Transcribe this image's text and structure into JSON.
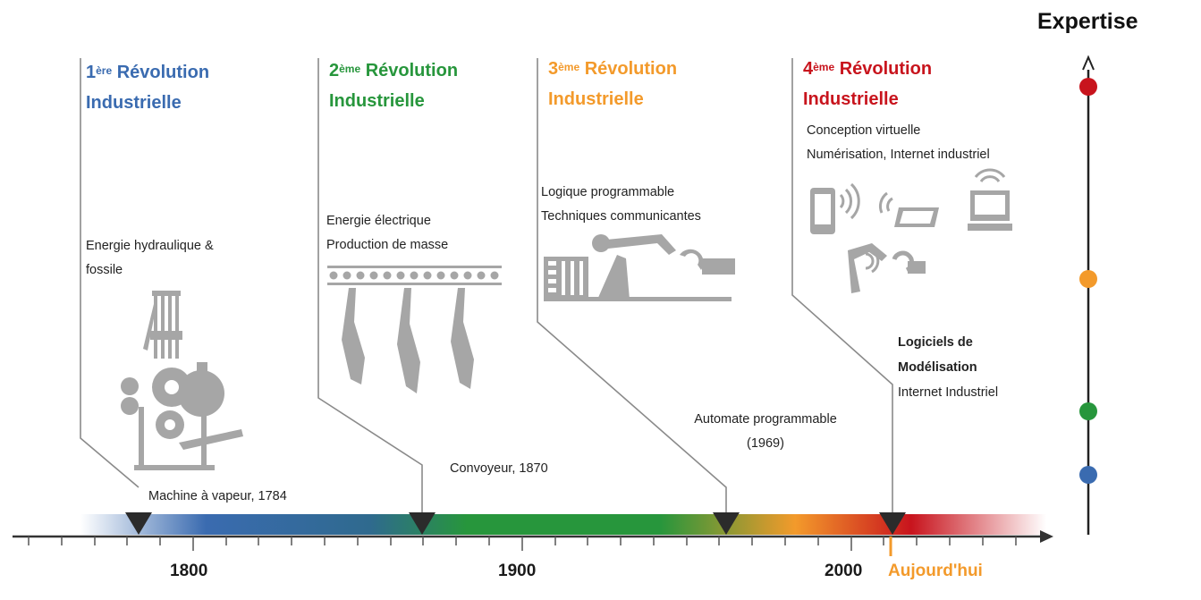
{
  "colors": {
    "rev1": "#3a6bb0",
    "rev2": "#27963c",
    "rev3": "#f39a2b",
    "rev4": "#c8141d",
    "today": "#f39a2b",
    "pictogram": "#a6a6a6",
    "line": "#7f7f7f"
  },
  "expertise": {
    "title": "Expertise",
    "dots": [
      "rev4",
      "rev3",
      "rev2",
      "rev1"
    ]
  },
  "revolutions": [
    {
      "ordinal": "1",
      "sup": "ère",
      "word": "Révolution",
      "line2": "Industrielle",
      "descriptions": [
        "Energie hydraulique  &",
        "fossile"
      ],
      "event": "Machine à vapeur, 1784",
      "color_key": "rev1",
      "icon": "steam-machine-icon"
    },
    {
      "ordinal": "2",
      "sup": "ème",
      "word": "Révolution",
      "line2": "Industrielle",
      "descriptions": [
        "Energie électrique",
        "Production de masse"
      ],
      "event": "Convoyeur, 1870",
      "color_key": "rev2",
      "icon": "conveyor-icon"
    },
    {
      "ordinal": "3",
      "sup": "ème",
      "word": " Révolution",
      "line2": "Industrielle",
      "descriptions": [
        "Logique programmable",
        "Techniques communicantes"
      ],
      "event_lines": [
        "Automate programmable",
        "(1969)"
      ],
      "color_key": "rev3",
      "icon": "robot-arm-icon"
    },
    {
      "ordinal": "4",
      "sup": "ème",
      "word": "Révolution",
      "line2": "Industrielle",
      "descriptions": [
        "Conception virtuelle",
        "Numérisation, Internet industriel"
      ],
      "event_bold": [
        "Logiciels de",
        "Modélisation"
      ],
      "event_extra": "Internet Industriel",
      "color_key": "rev4",
      "icon": "connected-devices-icon"
    }
  ],
  "axis": {
    "labels": [
      "1800",
      "1900",
      "2000"
    ],
    "today_label": "Aujourd'hui"
  }
}
